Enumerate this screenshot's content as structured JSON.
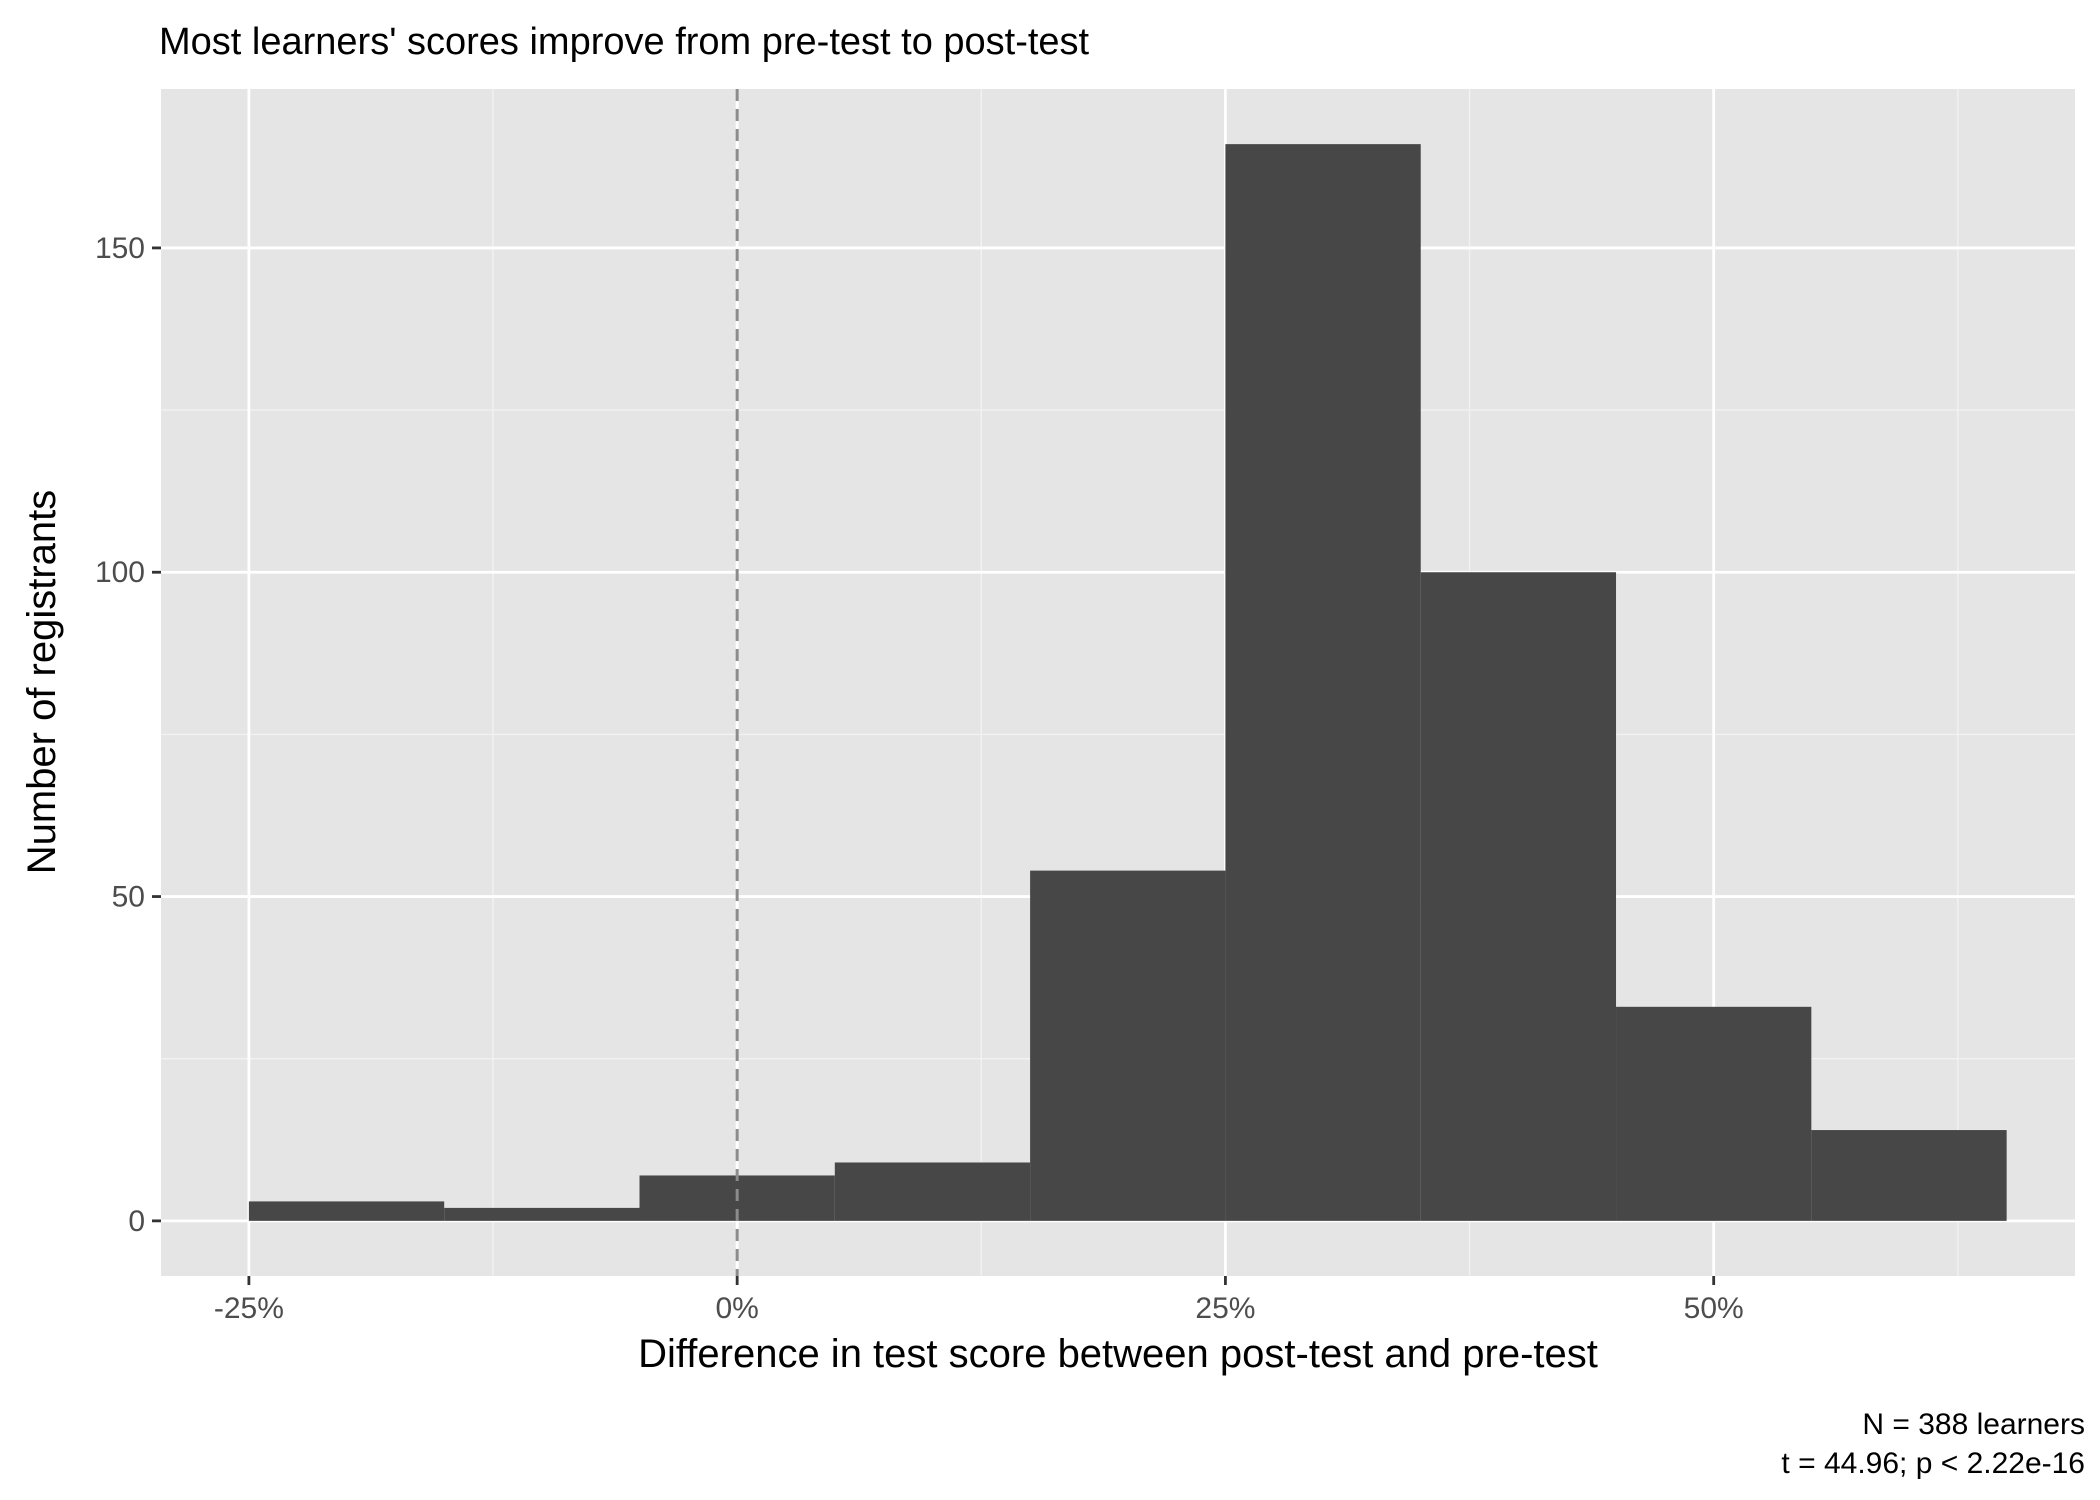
{
  "chart_data": {
    "type": "bar",
    "title": "Most learners' scores improve from pre-test to post-test",
    "xlabel": "Difference in test score between post-test and pre-test",
    "ylabel": "Number of registrants",
    "caption": [
      "N = 388 learners",
      "t = 44.96; p < 2.22e-16"
    ],
    "xlim": [
      -29.5,
      68.5
    ],
    "ylim": [
      -8.5,
      174.5
    ],
    "x_ticks": [
      {
        "value": -25,
        "label": "-25%"
      },
      {
        "value": 0,
        "label": "0%"
      },
      {
        "value": 25,
        "label": "25%"
      },
      {
        "value": 50,
        "label": "50%"
      }
    ],
    "y_ticks": [
      {
        "value": 0,
        "label": "0"
      },
      {
        "value": 50,
        "label": "50"
      },
      {
        "value": 100,
        "label": "100"
      },
      {
        "value": 150,
        "label": "150"
      }
    ],
    "x_minor_grid": [
      -12.5,
      12.5,
      37.5,
      62.5
    ],
    "y_minor_grid": [
      25,
      75,
      125
    ],
    "bins": [
      {
        "x0": -25,
        "x1": -15,
        "count": 3
      },
      {
        "x0": -15,
        "x1": -5,
        "count": 2
      },
      {
        "x0": -5,
        "x1": 5,
        "count": 7
      },
      {
        "x0": 5,
        "x1": 15,
        "count": 9
      },
      {
        "x0": 15,
        "x1": 25,
        "count": 54
      },
      {
        "x0": 25,
        "x1": 35,
        "count": 166
      },
      {
        "x0": 35,
        "x1": 45,
        "count": 100
      },
      {
        "x0": 45,
        "x1": 55,
        "count": 33
      },
      {
        "x0": 55,
        "x1": 65,
        "count": 14
      }
    ],
    "reference_line": {
      "x": 0,
      "style": "dashed"
    },
    "grid": true,
    "legend": "none",
    "colors": {
      "panel": "#e5e5e5",
      "grid_major": "#ffffff",
      "grid_minor": "#f2f2f2",
      "bar": "#474747",
      "reference_line": "#8c8c8c",
      "tick": "#333333"
    }
  }
}
